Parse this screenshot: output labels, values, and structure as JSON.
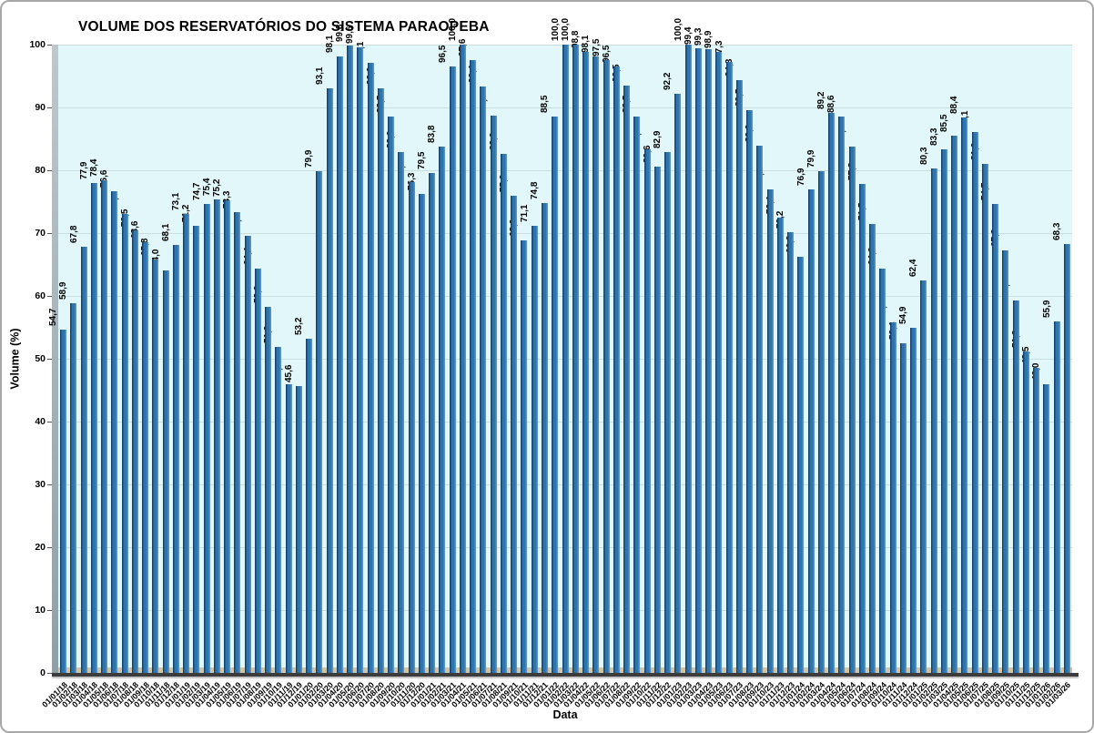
{
  "figure": {
    "background": "#ffffff",
    "border_color": "#a8a8a8"
  },
  "chart_data": {
    "type": "bar",
    "title": "VOLUME DOS RESERVATÓRIOS DO SISTEMA PARAOPEBA",
    "xlabel": "Data",
    "ylabel": "Volume (%)",
    "ylim": [
      0,
      100
    ],
    "ytick_labels": [
      "0",
      "10",
      "20",
      "30",
      "40",
      "50",
      "60",
      "70",
      "80",
      "90",
      "100"
    ],
    "grid": "horizontal",
    "legend": "none",
    "plot_background": "#e2f7f9",
    "bar_color": "#2e74ad",
    "bar_edge_dark": "#16446e",
    "bar_edge_light": "#5d93c4",
    "categories": [
      "01/01/18",
      "01/02/18",
      "01/03/18",
      "01/04/18",
      "01/05/18",
      "01/06/18",
      "01/07/18",
      "01/08/18",
      "01/09/18",
      "01/10/18",
      "01/11/18",
      "01/12/18",
      "01/01/19",
      "01/02/19",
      "01/03/19",
      "01/04/19",
      "01/05/19",
      "01/06/19",
      "01/07/19",
      "01/08/19",
      "01/09/19",
      "01/10/19",
      "01/11/19",
      "01/12/19",
      "01/01/20",
      "01/02/20",
      "01/03/20",
      "01/04/20",
      "01/05/20",
      "01/06/20",
      "01/07/20",
      "01/08/20",
      "01/09/20",
      "01/10/20",
      "01/11/20",
      "01/12/20",
      "01/01/21",
      "01/02/21",
      "01/03/21",
      "01/04/21",
      "01/05/21",
      "01/06/21",
      "01/07/21",
      "01/08/21",
      "01/09/21",
      "01/10/21",
      "01/11/21",
      "01/12/21",
      "01/01/22",
      "01/02/22",
      "01/03/22",
      "01/04/22",
      "01/05/22",
      "01/06/22",
      "01/07/22",
      "01/08/22",
      "01/09/22",
      "01/10/22",
      "01/11/22",
      "01/12/22",
      "01/01/23",
      "01/02/23",
      "01/03/23",
      "01/04/23",
      "01/05/23",
      "01/06/23",
      "01/07/23",
      "01/08/23",
      "01/09/23",
      "01/10/23",
      "01/11/23",
      "01/12/23",
      "01/01/24",
      "01/02/24",
      "01/03/24",
      "01/04/24",
      "01/05/24",
      "01/06/24",
      "01/07/24",
      "01/08/24",
      "01/09/24",
      "01/10/24",
      "01/11/24",
      "01/12/24",
      "01/01/25",
      "01/02/25",
      "01/03/25",
      "01/04/25",
      "01/05/25",
      "01/06/25",
      "01/07/25",
      "01/08/25",
      "01/09/25",
      "01/10/25",
      "01/11/25",
      "01/12/25",
      "01/01/26",
      "01/02/26",
      "01/03/26"
    ],
    "values": [
      54.7,
      58.9,
      67.8,
      77.9,
      78.4,
      76.6,
      73.1,
      70.5,
      68.6,
      65.8,
      64.0,
      68.1,
      73.1,
      71.2,
      74.7,
      75.4,
      75.2,
      73.3,
      69.5,
      64.4,
      58.3,
      51.9,
      46.0,
      45.6,
      53.2,
      79.9,
      93.1,
      98.1,
      99.8,
      99.6,
      97.1,
      93.0,
      88.5,
      82.9,
      78.1,
      76.3,
      79.5,
      83.8,
      96.5,
      100.0,
      97.6,
      93.4,
      88.7,
      82.6,
      75.9,
      68.9,
      71.1,
      74.8,
      88.5,
      100.0,
      100.0,
      98.8,
      98.1,
      97.5,
      96.5,
      93.5,
      88.5,
      83.4,
      80.6,
      82.9,
      92.2,
      100.0,
      99.4,
      99.3,
      98.9,
      97.3,
      94.3,
      89.5,
      83.9,
      77.0,
      72.4,
      70.2,
      66.3,
      76.9,
      79.9,
      89.2,
      88.6,
      83.8,
      77.8,
      71.5,
      64.3,
      55.8,
      52.4,
      54.9,
      62.4,
      80.3,
      83.3,
      85.5,
      88.4,
      86.1,
      81.0,
      74.7,
      67.2,
      59.3,
      51.2,
      48.5,
      46.0,
      55.9,
      68.3
    ],
    "value_labels": [
      "54,7",
      "58,9",
      "67,8",
      "77,9",
      "78,4",
      "76,6",
      "73,1",
      "70,5",
      "68,6",
      "65,8",
      "64,0",
      "68,1",
      "73,1",
      "71,2",
      "74,7",
      "75,4",
      "75,2",
      "73,3",
      "69,5",
      "64,4",
      "58,3",
      "51,9",
      "46,0",
      "45,6",
      "53,2",
      "79,9",
      "93,1",
      "98,1",
      "99,8",
      "99,6",
      "97,1",
      "93,0",
      "88,5",
      "82,9",
      "78,1",
      "76,3",
      "79,5",
      "83,8",
      "96,5",
      "100,0",
      "97,6",
      "93,4",
      "88,7",
      "82,6",
      "75,9",
      "68,9",
      "71,1",
      "74,8",
      "88,5",
      "100,0",
      "100,0",
      "98,8",
      "98,1",
      "97,5",
      "96,5",
      "93,5",
      "88,5",
      "83,4",
      "80,6",
      "82,9",
      "92,2",
      "100,0",
      "99,4",
      "99,3",
      "98,9",
      "97,3",
      "94,3",
      "89,5",
      "83,9",
      "77,0",
      "72,4",
      "70,2",
      "66,3",
      "76,9",
      "79,9",
      "89,2",
      "88,6",
      "83,8",
      "77,8",
      "71,5",
      "64,3",
      "55,8",
      "52,4",
      "54,9",
      "62,4",
      "80,3",
      "83,3",
      "85,5",
      "88,4",
      "86,1",
      "81,0",
      "74,7",
      "67,2",
      "59,3",
      "51,2",
      "48,5",
      "46,0",
      "55,9",
      "68,3"
    ]
  }
}
